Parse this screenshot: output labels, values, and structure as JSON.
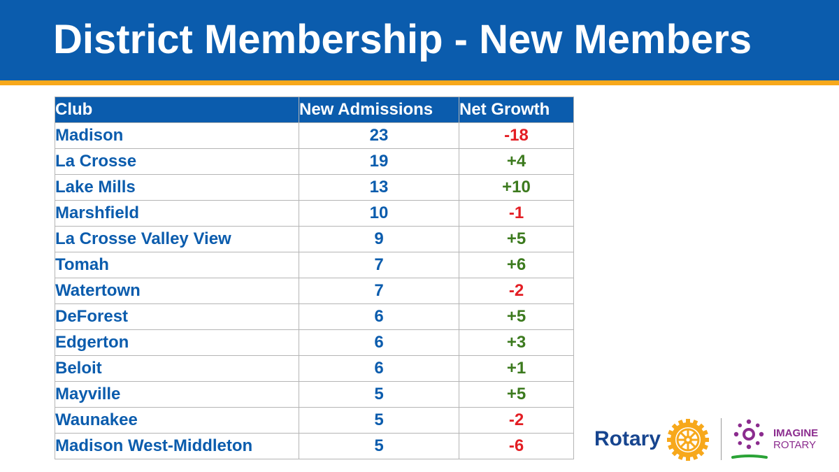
{
  "slide": {
    "title": "District Membership - New Members"
  },
  "colors": {
    "header_blue": "#0b5cad",
    "accent_gold": "#f7a81b",
    "negative_red": "#e31e24",
    "positive_green": "#3c7a1e"
  },
  "table": {
    "headers": [
      "Club",
      "New Admissions",
      "Net Growth"
    ],
    "rows": [
      {
        "club": "Madison",
        "admissions": "23",
        "net": "-18"
      },
      {
        "club": "La Crosse",
        "admissions": "19",
        "net": "+4"
      },
      {
        "club": "Lake Mills",
        "admissions": "13",
        "net": "+10"
      },
      {
        "club": "Marshfield",
        "admissions": "10",
        "net": "-1"
      },
      {
        "club": "La Crosse Valley View",
        "admissions": "9",
        "net": "+5"
      },
      {
        "club": "Tomah",
        "admissions": "7",
        "net": "+6"
      },
      {
        "club": "Watertown",
        "admissions": "7",
        "net": "-2"
      },
      {
        "club": "DeForest",
        "admissions": "6",
        "net": "+5"
      },
      {
        "club": "Edgerton",
        "admissions": "6",
        "net": "+3"
      },
      {
        "club": "Beloit",
        "admissions": "6",
        "net": "+1"
      },
      {
        "club": "Mayville",
        "admissions": "5",
        "net": "+5"
      },
      {
        "club": "Waunakee",
        "admissions": "5",
        "net": "-2"
      },
      {
        "club": "Madison West-Middleton",
        "admissions": "5",
        "net": "-6"
      }
    ]
  },
  "logos": {
    "rotary": "Rotary",
    "rotary_icon": "rotary-wheel-icon",
    "imagine_line1": "IMAGINE",
    "imagine_line2": "ROTARY",
    "imagine_icon": "imagine-rotary-icon"
  }
}
